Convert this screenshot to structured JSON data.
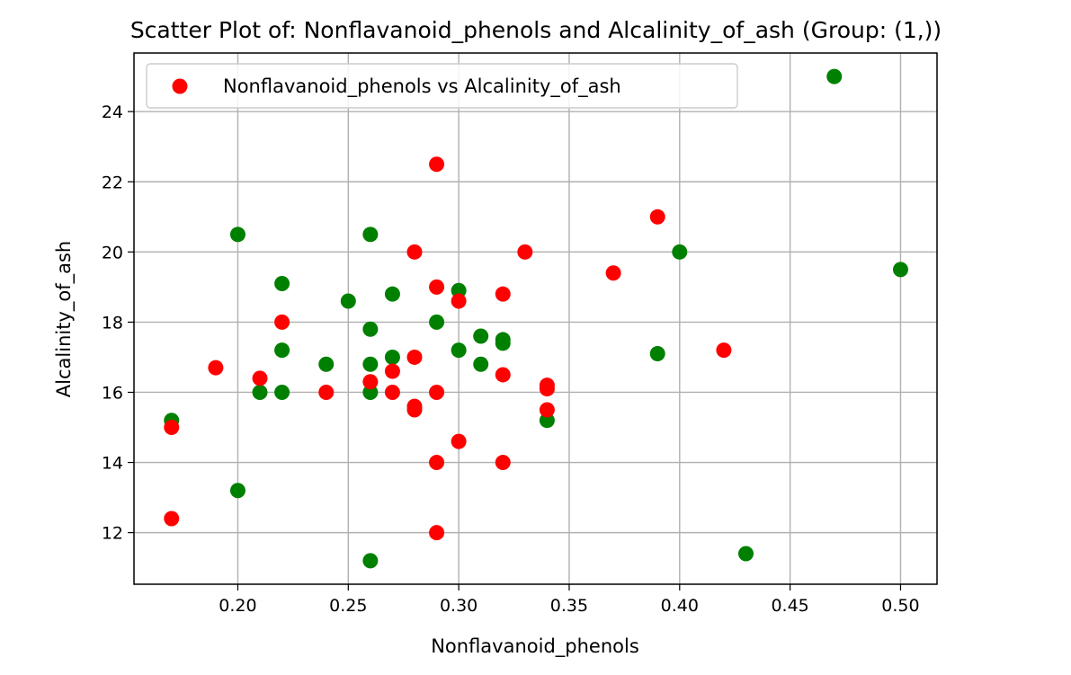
{
  "chart_data": {
    "type": "scatter",
    "title": "Scatter Plot of: Nonflavanoid_phenols and Alcalinity_of_ash (Group: (1,))",
    "xlabel": "Nonflavanoid_phenols",
    "ylabel": "Alcalinity_of_ash",
    "xlim": [
      0.153,
      0.5165
    ],
    "ylim": [
      10.53,
      25.67
    ],
    "x_ticks": [
      0.2,
      0.25,
      0.3,
      0.35,
      0.4,
      0.45,
      0.5
    ],
    "x_tick_labels": [
      "0.20",
      "0.25",
      "0.30",
      "0.35",
      "0.40",
      "0.45",
      "0.50"
    ],
    "y_ticks": [
      12,
      14,
      16,
      18,
      20,
      22,
      24
    ],
    "y_tick_labels": [
      "12",
      "14",
      "16",
      "18",
      "20",
      "22",
      "24"
    ],
    "grid": true,
    "legend": {
      "placement": "top-left",
      "entries": [
        {
          "label": "Nonflavanoid_phenols vs Alcalinity_of_ash",
          "color": "#ff0000"
        }
      ]
    },
    "series": [
      {
        "color": "#008000",
        "points": [
          [
            0.17,
            15.2
          ],
          [
            0.2,
            20.5
          ],
          [
            0.2,
            13.2
          ],
          [
            0.21,
            16.0
          ],
          [
            0.22,
            19.1
          ],
          [
            0.22,
            17.2
          ],
          [
            0.22,
            16.0
          ],
          [
            0.24,
            16.8
          ],
          [
            0.25,
            18.6
          ],
          [
            0.26,
            20.5
          ],
          [
            0.26,
            17.8
          ],
          [
            0.26,
            16.8
          ],
          [
            0.26,
            16.0
          ],
          [
            0.26,
            11.2
          ],
          [
            0.27,
            18.8
          ],
          [
            0.27,
            17.0
          ],
          [
            0.29,
            18.0
          ],
          [
            0.3,
            18.9
          ],
          [
            0.3,
            17.2
          ],
          [
            0.31,
            17.6
          ],
          [
            0.31,
            16.8
          ],
          [
            0.32,
            17.5
          ],
          [
            0.32,
            17.4
          ],
          [
            0.34,
            15.2
          ],
          [
            0.39,
            17.1
          ],
          [
            0.4,
            20.0
          ],
          [
            0.43,
            11.4
          ],
          [
            0.47,
            25.0
          ],
          [
            0.5,
            19.5
          ]
        ]
      },
      {
        "name": "Nonflavanoid_phenols vs Alcalinity_of_ash",
        "color": "#ff0000",
        "points": [
          [
            0.17,
            15.0
          ],
          [
            0.17,
            12.4
          ],
          [
            0.19,
            16.7
          ],
          [
            0.21,
            16.4
          ],
          [
            0.22,
            18.0
          ],
          [
            0.24,
            16.0
          ],
          [
            0.26,
            16.3
          ],
          [
            0.27,
            16.6
          ],
          [
            0.27,
            16.0
          ],
          [
            0.28,
            20.0
          ],
          [
            0.28,
            17.0
          ],
          [
            0.28,
            15.6
          ],
          [
            0.28,
            15.5
          ],
          [
            0.29,
            22.5
          ],
          [
            0.29,
            19.0
          ],
          [
            0.29,
            16.0
          ],
          [
            0.29,
            14.0
          ],
          [
            0.29,
            12.0
          ],
          [
            0.3,
            18.6
          ],
          [
            0.3,
            14.6
          ],
          [
            0.32,
            18.8
          ],
          [
            0.32,
            16.5
          ],
          [
            0.32,
            14.0
          ],
          [
            0.33,
            20.0
          ],
          [
            0.34,
            16.2
          ],
          [
            0.34,
            16.1
          ],
          [
            0.34,
            15.5
          ],
          [
            0.37,
            19.4
          ],
          [
            0.39,
            21.0
          ],
          [
            0.42,
            17.2
          ]
        ]
      }
    ]
  }
}
